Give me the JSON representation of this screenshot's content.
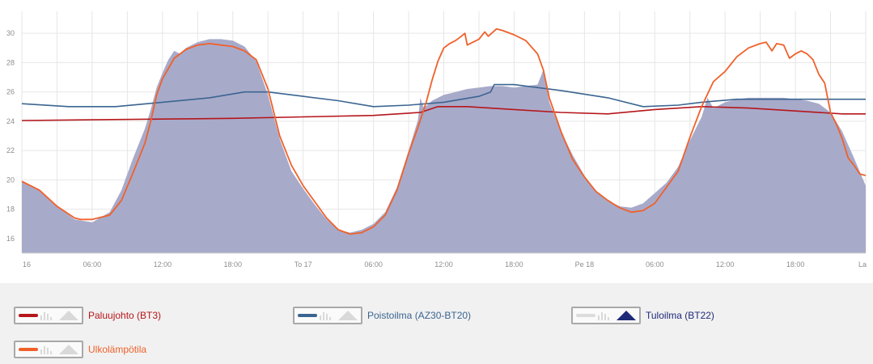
{
  "colors": {
    "paluujohto": "#b5161b",
    "poistoilma": "#3b6591",
    "tuloilma_fill": "#a8aaca",
    "tuloilma": "#1e2a78",
    "ulko": "#f0612a",
    "grid": "#e6e6e6",
    "tick": "#8e8e8e"
  },
  "chart_data": {
    "type": "line",
    "title": "",
    "xlabel": "",
    "ylabel": "",
    "x_hours_range": [
      0,
      72
    ],
    "ylim": [
      15,
      31.5
    ],
    "y_ticks": [
      "16",
      "18",
      "20",
      "22",
      "24",
      "26",
      "28",
      "30"
    ],
    "x_ticks": [
      {
        "h": 0,
        "label": "16"
      },
      {
        "h": 6,
        "label": "06:00"
      },
      {
        "h": 12,
        "label": "12:00"
      },
      {
        "h": 18,
        "label": "18:00"
      },
      {
        "h": 24,
        "label": "To 17"
      },
      {
        "h": 30,
        "label": "06:00"
      },
      {
        "h": 36,
        "label": "12:00"
      },
      {
        "h": 42,
        "label": "18:00"
      },
      {
        "h": 48,
        "label": "Pe 18"
      },
      {
        "h": 54,
        "label": "06:00"
      },
      {
        "h": 60,
        "label": "12:00"
      },
      {
        "h": 66,
        "label": "18:00"
      },
      {
        "h": 72,
        "label": "La"
      }
    ],
    "series": [
      {
        "id": "tuloilma",
        "name": "Tuloilma (BT22)",
        "style": "area",
        "points": [
          [
            0,
            19.9
          ],
          [
            1.5,
            19.3
          ],
          [
            3,
            18.2
          ],
          [
            4.5,
            17.3
          ],
          [
            6,
            17.1
          ],
          [
            7.5,
            17.8
          ],
          [
            8.5,
            19.3
          ],
          [
            9.5,
            21.5
          ],
          [
            10.5,
            23.5
          ],
          [
            11,
            24.8
          ],
          [
            11.5,
            26.3
          ],
          [
            12,
            27.3
          ],
          [
            12.5,
            28.2
          ],
          [
            13,
            28.8
          ],
          [
            13.5,
            28.6
          ],
          [
            14,
            29
          ],
          [
            15,
            29.4
          ],
          [
            16,
            29.6
          ],
          [
            17,
            29.6
          ],
          [
            18,
            29.5
          ],
          [
            19,
            29.1
          ],
          [
            20,
            28.1
          ],
          [
            21,
            25.8
          ],
          [
            22,
            22.8
          ],
          [
            23,
            20.6
          ],
          [
            24,
            19.4
          ],
          [
            25,
            18.3
          ],
          [
            26,
            17.3
          ],
          [
            27,
            16.6
          ],
          [
            28,
            16.4
          ],
          [
            29,
            16.6
          ],
          [
            30,
            17
          ],
          [
            31,
            17.8
          ],
          [
            32,
            19.5
          ],
          [
            33,
            22
          ],
          [
            33.8,
            24.1
          ],
          [
            34,
            25.6
          ],
          [
            34.3,
            24.9
          ],
          [
            35,
            25.4
          ],
          [
            36,
            25.8
          ],
          [
            37,
            26
          ],
          [
            38,
            26.2
          ],
          [
            39,
            26.3
          ],
          [
            40,
            26.4
          ],
          [
            41,
            26.4
          ],
          [
            42,
            26.3
          ],
          [
            43,
            26.4
          ],
          [
            44,
            26.5
          ],
          [
            44.5,
            27.5
          ],
          [
            45,
            25.3
          ],
          [
            46,
            23.3
          ],
          [
            47,
            21.7
          ],
          [
            48,
            20.3
          ],
          [
            49,
            19.2
          ],
          [
            50,
            18.6
          ],
          [
            51,
            18.2
          ],
          [
            52,
            18.1
          ],
          [
            53,
            18.4
          ],
          [
            54,
            19.1
          ],
          [
            55,
            19.8
          ],
          [
            56,
            20.9
          ],
          [
            57,
            22.7
          ],
          [
            58,
            24.3
          ],
          [
            58.5,
            25.6
          ],
          [
            59,
            24.9
          ],
          [
            60,
            25.3
          ],
          [
            61,
            25.5
          ],
          [
            62,
            25.6
          ],
          [
            63,
            25.6
          ],
          [
            64,
            25.6
          ],
          [
            65,
            25.6
          ],
          [
            66,
            25.5
          ],
          [
            67,
            25.4
          ],
          [
            68,
            25.2
          ],
          [
            69,
            24.6
          ],
          [
            70,
            23.3
          ],
          [
            71,
            21.5
          ],
          [
            72,
            19.6
          ]
        ]
      },
      {
        "id": "paluujohto",
        "name": "Paluujohto (BT3)",
        "style": "line",
        "points": [
          [
            0,
            24.05
          ],
          [
            6,
            24.1
          ],
          [
            12,
            24.15
          ],
          [
            18,
            24.2
          ],
          [
            24,
            24.3
          ],
          [
            30,
            24.4
          ],
          [
            34,
            24.6
          ],
          [
            35.5,
            25
          ],
          [
            38,
            25
          ],
          [
            42,
            24.8
          ],
          [
            46,
            24.6
          ],
          [
            50,
            24.5
          ],
          [
            54,
            24.8
          ],
          [
            58,
            25
          ],
          [
            62,
            24.9
          ],
          [
            66,
            24.7
          ],
          [
            70,
            24.5
          ],
          [
            72,
            24.5
          ]
        ]
      },
      {
        "id": "poistoilma",
        "name": "Poistoilma (AZ30-BT20)",
        "style": "line",
        "points": [
          [
            0,
            25.2
          ],
          [
            4,
            25
          ],
          [
            8,
            25
          ],
          [
            12,
            25.3
          ],
          [
            16,
            25.6
          ],
          [
            19,
            26
          ],
          [
            21,
            26
          ],
          [
            24,
            25.7
          ],
          [
            27,
            25.4
          ],
          [
            30,
            25
          ],
          [
            33,
            25.1
          ],
          [
            36,
            25.3
          ],
          [
            39,
            25.7
          ],
          [
            40,
            26
          ],
          [
            40.3,
            26.5
          ],
          [
            42,
            26.5
          ],
          [
            46,
            26.1
          ],
          [
            50,
            25.6
          ],
          [
            53,
            25
          ],
          [
            56,
            25.1
          ],
          [
            58,
            25.3
          ],
          [
            61,
            25.5
          ],
          [
            66,
            25.5
          ],
          [
            72,
            25.5
          ]
        ]
      },
      {
        "id": "ulko",
        "name": "Ulkolämpötila",
        "style": "line",
        "points": [
          [
            0,
            19.9
          ],
          [
            1.5,
            19.3
          ],
          [
            3,
            18.2
          ],
          [
            4.5,
            17.4
          ],
          [
            5,
            17.3
          ],
          [
            6,
            17.3
          ],
          [
            7.5,
            17.6
          ],
          [
            8.5,
            18.6
          ],
          [
            9.5,
            20.5
          ],
          [
            10.5,
            22.5
          ],
          [
            11,
            24
          ],
          [
            11.5,
            25.8
          ],
          [
            12,
            26.9
          ],
          [
            12.5,
            27.6
          ],
          [
            13,
            28.3
          ],
          [
            14,
            28.9
          ],
          [
            15,
            29.2
          ],
          [
            16,
            29.3
          ],
          [
            17,
            29.2
          ],
          [
            18,
            29.1
          ],
          [
            19,
            28.8
          ],
          [
            20,
            28.2
          ],
          [
            21,
            26.2
          ],
          [
            22,
            23
          ],
          [
            23,
            21
          ],
          [
            24,
            19.6
          ],
          [
            25,
            18.5
          ],
          [
            26,
            17.4
          ],
          [
            27,
            16.6
          ],
          [
            28,
            16.3
          ],
          [
            29,
            16.4
          ],
          [
            30,
            16.8
          ],
          [
            31,
            17.6
          ],
          [
            32,
            19.3
          ],
          [
            33,
            21.8
          ],
          [
            33.8,
            23.6
          ],
          [
            34.5,
            25.3
          ],
          [
            35,
            26.8
          ],
          [
            35.5,
            28.1
          ],
          [
            36,
            29
          ],
          [
            36.5,
            29.3
          ],
          [
            37,
            29.5
          ],
          [
            37.5,
            29.8
          ],
          [
            37.8,
            30
          ],
          [
            38,
            29.2
          ],
          [
            38.5,
            29.4
          ],
          [
            39,
            29.6
          ],
          [
            39.5,
            30.1
          ],
          [
            39.8,
            29.8
          ],
          [
            40.5,
            30.3
          ],
          [
            41,
            30.2
          ],
          [
            42,
            29.9
          ],
          [
            43,
            29.5
          ],
          [
            44,
            28.6
          ],
          [
            44.5,
            27.5
          ],
          [
            45,
            25.6
          ],
          [
            46,
            23.3
          ],
          [
            47,
            21.4
          ],
          [
            48,
            20.2
          ],
          [
            49,
            19.2
          ],
          [
            50,
            18.6
          ],
          [
            51,
            18.1
          ],
          [
            52,
            17.8
          ],
          [
            53,
            17.9
          ],
          [
            54,
            18.4
          ],
          [
            55,
            19.5
          ],
          [
            56,
            20.6
          ],
          [
            57,
            22.9
          ],
          [
            58,
            25
          ],
          [
            59,
            26.7
          ],
          [
            60,
            27.4
          ],
          [
            61,
            28.4
          ],
          [
            62,
            29
          ],
          [
            63,
            29.3
          ],
          [
            63.5,
            29.4
          ],
          [
            64,
            28.8
          ],
          [
            64.4,
            29.3
          ],
          [
            65,
            29.2
          ],
          [
            65.5,
            28.3
          ],
          [
            66,
            28.6
          ],
          [
            66.5,
            28.8
          ],
          [
            67,
            28.6
          ],
          [
            67.5,
            28.2
          ],
          [
            68,
            27.2
          ],
          [
            68.5,
            26.6
          ],
          [
            69,
            24.6
          ],
          [
            69.5,
            23.8
          ],
          [
            70,
            22.8
          ],
          [
            70.5,
            21.5
          ],
          [
            71,
            21
          ],
          [
            71.5,
            20.4
          ],
          [
            72,
            20.3
          ]
        ]
      }
    ]
  },
  "legend": [
    {
      "id": "paluujohto",
      "label": "Paluujohto (BT3)",
      "swatch": "line"
    },
    {
      "id": "poistoilma",
      "label": "Poistoilma (AZ30-BT20)",
      "swatch": "line"
    },
    {
      "id": "tuloilma",
      "label": "Tuloilma (BT22)",
      "swatch": "area"
    },
    {
      "id": "ulko",
      "label": "Ulkolämpötila",
      "swatch": "line"
    }
  ]
}
